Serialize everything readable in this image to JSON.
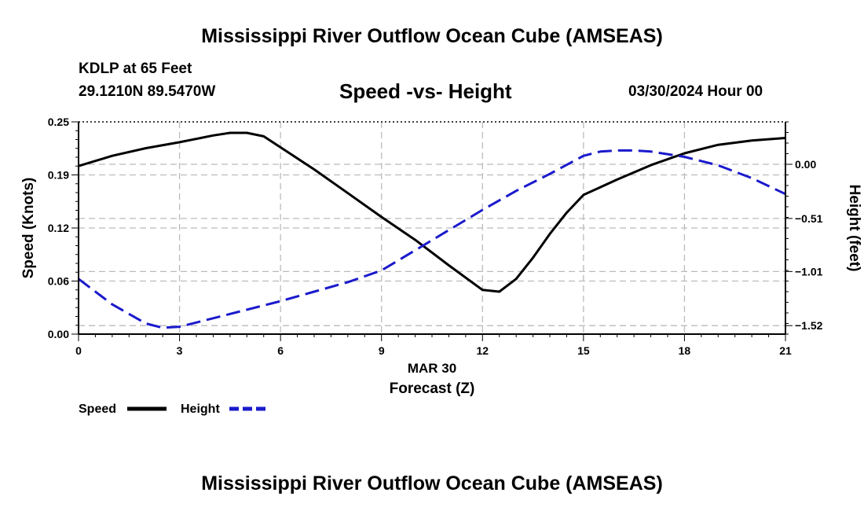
{
  "header": {
    "title": "Mississippi River Outflow Ocean Cube (AMSEAS)",
    "station": "KDLP at 65 Feet",
    "coords": "29.1210N  89.5470W",
    "chart_title": "Speed -vs- Height",
    "datetime": "03/30/2024 Hour 00",
    "footer_title": "Mississippi River Outflow Ocean Cube (AMSEAS)"
  },
  "colors": {
    "speed": "#000000",
    "height": "#1a1acc",
    "grid": "#bbbbbb"
  },
  "chart_data": {
    "type": "line",
    "title": "Speed -vs- Height",
    "xlabel": "Forecast (Z)",
    "xdate_label": "MAR 30",
    "ylabel": "Speed (Knots)",
    "y2label": "Height (feet)",
    "xlim": [
      0,
      21
    ],
    "ylim": [
      0,
      0.25
    ],
    "y2lim": [
      -1.6,
      0.4
    ],
    "xticks": [
      0,
      3,
      6,
      9,
      12,
      15,
      18,
      21
    ],
    "xtick_labels": [
      "0",
      "3",
      "6",
      "9",
      "12",
      "15",
      "18",
      "21"
    ],
    "yticks": [
      0,
      0.0625,
      0.125,
      0.1875,
      0.25
    ],
    "ytick_labels": [
      "0.00",
      "0.06",
      "0.12",
      "0.19",
      "0.25"
    ],
    "y2ticks": [
      -1.52,
      -1.01,
      -0.51,
      0.0
    ],
    "y2tick_labels": [
      "−1.52",
      "−1.01",
      "−0.51",
      "0.00"
    ],
    "grid": true,
    "legend": "bottom-left",
    "series": [
      {
        "name": "Speed",
        "axis": "left",
        "style": "solid",
        "x": [
          0,
          1,
          2,
          3,
          4,
          4.5,
          5,
          5.5,
          6,
          7,
          8,
          9,
          10,
          11,
          12,
          12.5,
          13,
          13.5,
          14,
          14.5,
          15,
          16,
          17,
          18,
          19,
          20,
          21
        ],
        "values": [
          0.198,
          0.21,
          0.219,
          0.226,
          0.234,
          0.237,
          0.237,
          0.233,
          0.22,
          0.194,
          0.166,
          0.138,
          0.111,
          0.081,
          0.052,
          0.05,
          0.065,
          0.09,
          0.118,
          0.143,
          0.164,
          0.182,
          0.199,
          0.213,
          0.223,
          0.228,
          0.231
        ]
      },
      {
        "name": "Height",
        "axis": "right",
        "style": "dashed",
        "x": [
          0,
          1,
          2,
          2.5,
          3,
          4,
          5,
          6,
          7,
          8,
          9,
          10,
          11,
          12,
          13,
          14,
          15,
          15.5,
          16,
          16.5,
          17,
          18,
          19,
          20,
          21
        ],
        "values": [
          -1.08,
          -1.32,
          -1.5,
          -1.54,
          -1.53,
          -1.45,
          -1.37,
          -1.29,
          -1.2,
          -1.11,
          -1.0,
          -0.81,
          -0.62,
          -0.43,
          -0.25,
          -0.09,
          0.08,
          0.12,
          0.13,
          0.13,
          0.12,
          0.07,
          -0.01,
          -0.13,
          -0.28
        ]
      }
    ]
  }
}
